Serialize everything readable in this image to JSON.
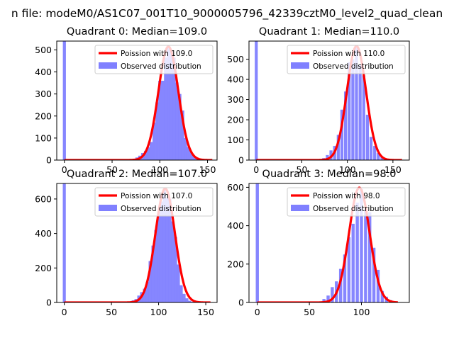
{
  "suptitle": "n file: modeM0/AS1C07_001T10_9000005796_42339cztM0_level2_quad_clean",
  "colors": {
    "line": "#ff0000",
    "hist": "#8080ff",
    "axis": "#000000",
    "legend_border": "#cccccc"
  },
  "chart_data": [
    {
      "type": "bar",
      "title": "Quadrant 0: Median=109.0",
      "xlim": [
        -8,
        160
      ],
      "ylim": [
        0,
        540
      ],
      "xticks": [
        0,
        50,
        100,
        150
      ],
      "yticks": [
        0,
        100,
        200,
        300,
        400,
        500
      ],
      "legend": {
        "placement": "top-right",
        "line_label": "Poission with 109.0",
        "bar_label": "Observed distribution"
      },
      "bin_width": 3.2,
      "hist": [
        [
          0,
          540
        ],
        [
          70,
          2
        ],
        [
          73,
          5
        ],
        [
          76,
          12
        ],
        [
          79,
          20
        ],
        [
          82,
          32
        ],
        [
          85,
          42
        ],
        [
          88,
          58
        ],
        [
          91,
          82
        ],
        [
          94,
          170
        ],
        [
          97,
          262
        ],
        [
          100,
          360
        ],
        [
          103,
          360
        ],
        [
          106,
          465
        ],
        [
          109,
          515
        ],
        [
          112,
          495
        ],
        [
          115,
          465
        ],
        [
          118,
          352
        ],
        [
          121,
          300
        ],
        [
          124,
          225
        ],
        [
          127,
          100
        ],
        [
          130,
          60
        ],
        [
          133,
          35
        ],
        [
          136,
          18
        ],
        [
          139,
          8
        ],
        [
          142,
          4
        ]
      ],
      "poisson": {
        "mean": 109.0,
        "peak": 515,
        "x_start": 0,
        "x_end": 155
      }
    },
    {
      "type": "bar",
      "title": "Quadrant 1: Median=110.0",
      "xlim": [
        -8,
        168
      ],
      "ylim": [
        0,
        590
      ],
      "xticks": [
        0,
        50,
        100,
        150
      ],
      "yticks": [
        0,
        100,
        200,
        300,
        400,
        500
      ],
      "legend": {
        "placement": "top-right",
        "line_label": "Poission with 110.0",
        "bar_label": "Observed distribution"
      },
      "bin_width": 3.3,
      "hist": [
        [
          0,
          590
        ],
        [
          70,
          3
        ],
        [
          74,
          10
        ],
        [
          78,
          25
        ],
        [
          82,
          48
        ],
        [
          86,
          70
        ],
        [
          90,
          125
        ],
        [
          94,
          250
        ],
        [
          98,
          340
        ],
        [
          102,
          485
        ],
        [
          106,
          500
        ],
        [
          110,
          560
        ],
        [
          114,
          470
        ],
        [
          118,
          420
        ],
        [
          122,
          225
        ],
        [
          126,
          115
        ],
        [
          130,
          70
        ],
        [
          134,
          35
        ],
        [
          138,
          14
        ],
        [
          142,
          4
        ]
      ],
      "poisson": {
        "mean": 110.0,
        "peak": 565,
        "x_start": 0,
        "x_end": 160
      }
    },
    {
      "type": "bar",
      "title": "Quadrant 2: Median=107.0",
      "xlim": [
        -8,
        162
      ],
      "ylim": [
        0,
        690
      ],
      "xticks": [
        0,
        50,
        100,
        150
      ],
      "yticks": [
        0,
        200,
        400,
        600
      ],
      "legend": {
        "placement": "top-right",
        "line_label": "Poission with 107.0",
        "bar_label": "Observed distribution"
      },
      "bin_width": 3.2,
      "hist": [
        [
          0,
          690
        ],
        [
          70,
          5
        ],
        [
          73,
          12
        ],
        [
          76,
          20
        ],
        [
          79,
          40
        ],
        [
          82,
          60
        ],
        [
          85,
          80
        ],
        [
          88,
          120
        ],
        [
          91,
          240
        ],
        [
          94,
          330
        ],
        [
          97,
          420
        ],
        [
          100,
          520
        ],
        [
          103,
          585
        ],
        [
          106,
          660
        ],
        [
          109,
          605
        ],
        [
          112,
          600
        ],
        [
          115,
          470
        ],
        [
          118,
          380
        ],
        [
          121,
          220
        ],
        [
          124,
          100
        ],
        [
          127,
          50
        ],
        [
          130,
          24
        ],
        [
          133,
          10
        ],
        [
          136,
          4
        ]
      ],
      "poisson": {
        "mean": 107.0,
        "peak": 660,
        "x_start": 0,
        "x_end": 155
      }
    },
    {
      "type": "bar",
      "title": "Quadrant 3: Median=98.0",
      "xlim": [
        -8,
        146
      ],
      "ylim": [
        0,
        620
      ],
      "xticks": [
        0,
        50,
        100
      ],
      "yticks": [
        0,
        200,
        400,
        600
      ],
      "legend": {
        "placement": "top-right",
        "line_label": "Poission with 98.0",
        "bar_label": "Observed distribution"
      },
      "bin_width": 3.0,
      "hist": [
        [
          0,
          620
        ],
        [
          60,
          5
        ],
        [
          64,
          18
        ],
        [
          68,
          36
        ],
        [
          72,
          80
        ],
        [
          76,
          110
        ],
        [
          80,
          175
        ],
        [
          84,
          250
        ],
        [
          88,
          340
        ],
        [
          92,
          410
        ],
        [
          96,
          520
        ],
        [
          100,
          590
        ],
        [
          104,
          485
        ],
        [
          108,
          470
        ],
        [
          112,
          285
        ],
        [
          116,
          170
        ],
        [
          120,
          60
        ],
        [
          124,
          30
        ],
        [
          128,
          12
        ]
      ],
      "poisson": {
        "mean": 98.0,
        "peak": 598,
        "x_start": 0,
        "x_end": 135
      }
    }
  ]
}
